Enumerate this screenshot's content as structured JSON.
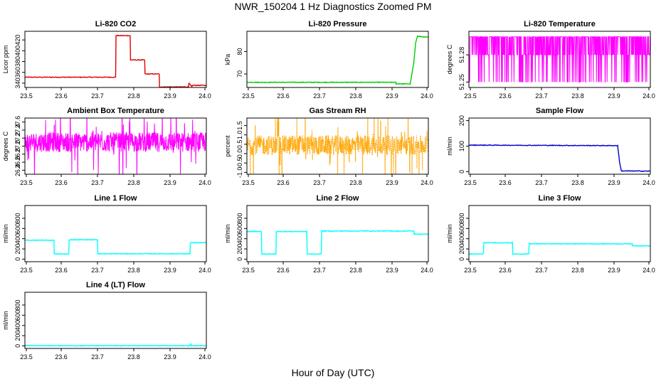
{
  "figure": {
    "title": "NWR_150204  1 Hz Diagnostics Zoomed PM",
    "xlabel": "Hour of Day (UTC)"
  },
  "chart_data": [
    {
      "type": "line",
      "title": "Li-820 CO2",
      "ylabel": "Licor ppm",
      "color": "#e00000",
      "xlim": [
        23.5,
        24.0
      ],
      "ylim": [
        332,
        436
      ],
      "xticks": [
        23.5,
        23.6,
        23.7,
        23.8,
        23.9,
        24.0
      ],
      "yticks": [
        340,
        360,
        380,
        400,
        420
      ],
      "x": [
        23.5,
        23.75,
        23.751,
        23.79,
        23.791,
        23.83,
        23.831,
        23.87,
        23.871,
        23.951,
        23.952,
        23.96,
        23.961,
        24.0
      ],
      "y": [
        351,
        351,
        428,
        428,
        383,
        383,
        357,
        357,
        333,
        333,
        340,
        333,
        336,
        336
      ]
    },
    {
      "type": "line",
      "title": "Li-820 Pressure",
      "ylabel": "kPa",
      "color": "#00cc00",
      "xlim": [
        23.5,
        24.0
      ],
      "ylim": [
        64,
        89
      ],
      "xticks": [
        23.5,
        23.6,
        23.7,
        23.8,
        23.9,
        24.0
      ],
      "yticks": [
        70,
        80
      ],
      "x": [
        23.5,
        23.91,
        23.911,
        23.95,
        23.96,
        23.965,
        23.97,
        24.0
      ],
      "y": [
        66.3,
        66.3,
        65.6,
        65.6,
        75,
        84,
        86.8,
        86.3
      ]
    },
    {
      "type": "line",
      "title": "Li-820 Temperature",
      "ylabel": "degrees C",
      "color": "#ff00ff",
      "xlim": [
        23.5,
        24.0
      ],
      "ylim": [
        51.244,
        51.306
      ],
      "xticks": [
        23.5,
        23.6,
        23.7,
        23.8,
        23.9,
        24.0
      ],
      "yticks": [
        51.25,
        51.28
      ],
      "levels": [
        51.25,
        51.28,
        51.3
      ]
    },
    {
      "type": "line",
      "title": "Ambient Box Temperature",
      "ylabel": "degrees C",
      "color": "#ff00ff",
      "xlim": [
        23.5,
        24.0
      ],
      "ylim": [
        26.3,
        27.7
      ],
      "xticks": [
        23.5,
        23.6,
        23.7,
        23.8,
        23.9,
        24.0
      ],
      "yticks": [
        26.4,
        26.6,
        26.8,
        27.0,
        27.2,
        27.4,
        27.6
      ],
      "levels": [
        27.1
      ]
    },
    {
      "type": "line",
      "title": "Gas Stream RH",
      "ylabel": "percent",
      "color": "#ffa500",
      "xlim": [
        23.5,
        24.0
      ],
      "ylim": [
        -1.1,
        1.9
      ],
      "xticks": [
        23.5,
        23.6,
        23.7,
        23.8,
        23.9,
        24.0
      ],
      "yticks": [
        -1.0,
        -0.5,
        0.0,
        0.5,
        1.0,
        1.5
      ],
      "levels": [
        0.45
      ]
    },
    {
      "type": "line",
      "title": "Sample Flow",
      "ylabel": "ml/min",
      "color": "#0000cc",
      "xlim": [
        23.5,
        24.0
      ],
      "ylim": [
        -10,
        210
      ],
      "xticks": [
        23.5,
        23.6,
        23.7,
        23.8,
        23.9,
        24.0
      ],
      "yticks": [
        0,
        100,
        200
      ],
      "x": [
        23.5,
        23.91,
        23.915,
        23.92,
        24.0
      ],
      "y": [
        104,
        102,
        40,
        3,
        2
      ]
    },
    {
      "type": "line",
      "title": "Line 1 Flow",
      "ylabel": "ml/min",
      "color": "#00ffff",
      "xlim": [
        23.5,
        24.0
      ],
      "ylim": [
        -50,
        1050
      ],
      "xticks": [
        23.5,
        23.6,
        23.7,
        23.8,
        23.9,
        24.0
      ],
      "yticks": [
        0,
        200,
        400,
        600,
        800
      ],
      "x": [
        23.5,
        23.58,
        23.581,
        23.621,
        23.622,
        23.7,
        23.701,
        23.955,
        23.956,
        24.0
      ],
      "y": [
        370,
        370,
        100,
        100,
        380,
        380,
        105,
        105,
        320,
        320
      ]
    },
    {
      "type": "line",
      "title": "Line 2 Flow",
      "ylabel": "ml/min",
      "color": "#00ffff",
      "xlim": [
        23.5,
        24.0
      ],
      "ylim": [
        -50,
        1050
      ],
      "xticks": [
        23.5,
        23.6,
        23.7,
        23.8,
        23.9,
        24.0
      ],
      "yticks": [
        0,
        200,
        400,
        600,
        800
      ],
      "x": [
        23.5,
        23.54,
        23.541,
        23.58,
        23.581,
        23.665,
        23.666,
        23.705,
        23.706,
        23.96,
        23.961,
        24.0
      ],
      "y": [
        540,
        540,
        100,
        100,
        540,
        540,
        100,
        100,
        550,
        550,
        490,
        490
      ]
    },
    {
      "type": "line",
      "title": "Line 3 Flow",
      "ylabel": "ml/min",
      "color": "#00ffff",
      "xlim": [
        23.5,
        24.0
      ],
      "ylim": [
        -50,
        1050
      ],
      "xticks": [
        23.5,
        23.6,
        23.7,
        23.8,
        23.9,
        24.0
      ],
      "yticks": [
        0,
        200,
        400,
        600,
        800
      ],
      "x": [
        23.5,
        23.54,
        23.541,
        23.62,
        23.621,
        23.665,
        23.666,
        23.95,
        23.951,
        24.0
      ],
      "y": [
        100,
        100,
        320,
        320,
        100,
        100,
        300,
        300,
        260,
        260
      ]
    },
    {
      "type": "line",
      "title": "Line 4 (LT) Flow",
      "ylabel": "ml/min",
      "color": "#00ffff",
      "xlim": [
        23.5,
        24.0
      ],
      "ylim": [
        -50,
        1050
      ],
      "xticks": [
        23.5,
        23.6,
        23.7,
        23.8,
        23.9,
        24.0
      ],
      "yticks": [
        0,
        200,
        400,
        600,
        800
      ],
      "x": [
        23.5,
        23.955,
        23.957,
        23.959,
        24.0
      ],
      "y": [
        5,
        5,
        45,
        5,
        5
      ]
    }
  ]
}
